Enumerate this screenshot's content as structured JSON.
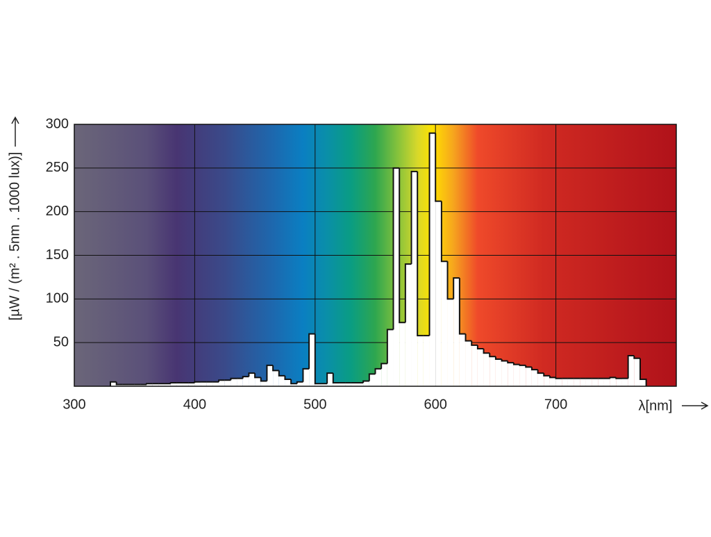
{
  "chart_data": {
    "type": "histogram",
    "x_label": "λ[nm]",
    "y_label": "[µW / (m² . 5nm . 1000 lux)]",
    "bins": [
      330,
      335,
      340,
      345,
      350,
      355,
      360,
      365,
      370,
      375,
      380,
      385,
      390,
      395,
      400,
      405,
      410,
      415,
      420,
      425,
      430,
      435,
      440,
      445,
      450,
      455,
      460,
      465,
      470,
      475,
      480,
      485,
      490,
      495,
      500,
      505,
      510,
      515,
      520,
      525,
      530,
      535,
      540,
      545,
      550,
      555,
      560,
      565,
      570,
      575,
      580,
      585,
      590,
      595,
      600,
      605,
      610,
      615,
      620,
      625,
      630,
      635,
      640,
      645,
      650,
      655,
      660,
      665,
      670,
      675,
      680,
      685,
      690,
      695,
      700,
      705,
      710,
      715,
      720,
      725,
      730,
      735,
      740,
      745,
      750,
      755,
      760,
      765,
      770,
      775
    ],
    "counts": [
      5,
      2,
      2,
      2,
      2,
      2,
      3,
      3,
      3,
      3,
      4,
      4,
      4,
      4,
      5,
      5,
      5,
      5,
      7,
      7,
      9,
      9,
      11,
      15,
      10,
      6,
      24,
      18,
      12,
      8,
      3,
      5,
      20,
      60,
      3,
      3,
      15,
      4,
      4,
      4,
      4,
      4,
      6,
      14,
      20,
      26,
      65,
      250,
      73,
      140,
      246,
      58,
      58,
      290,
      212,
      143,
      100,
      124,
      60,
      52,
      47,
      43,
      38,
      34,
      31,
      29,
      27,
      25,
      24,
      22,
      19,
      15,
      12,
      10,
      9,
      9,
      9,
      9,
      9,
      9,
      9,
      9,
      9,
      10,
      9,
      9,
      35,
      32,
      8
    ],
    "color": "#ffffff",
    "xlim": [
      300,
      800
    ],
    "xticks": [
      300,
      400,
      500,
      600,
      700
    ],
    "ylim": [
      0,
      300
    ],
    "yticks": [
      50,
      100,
      150,
      200,
      250,
      300
    ],
    "grid": true
  }
}
